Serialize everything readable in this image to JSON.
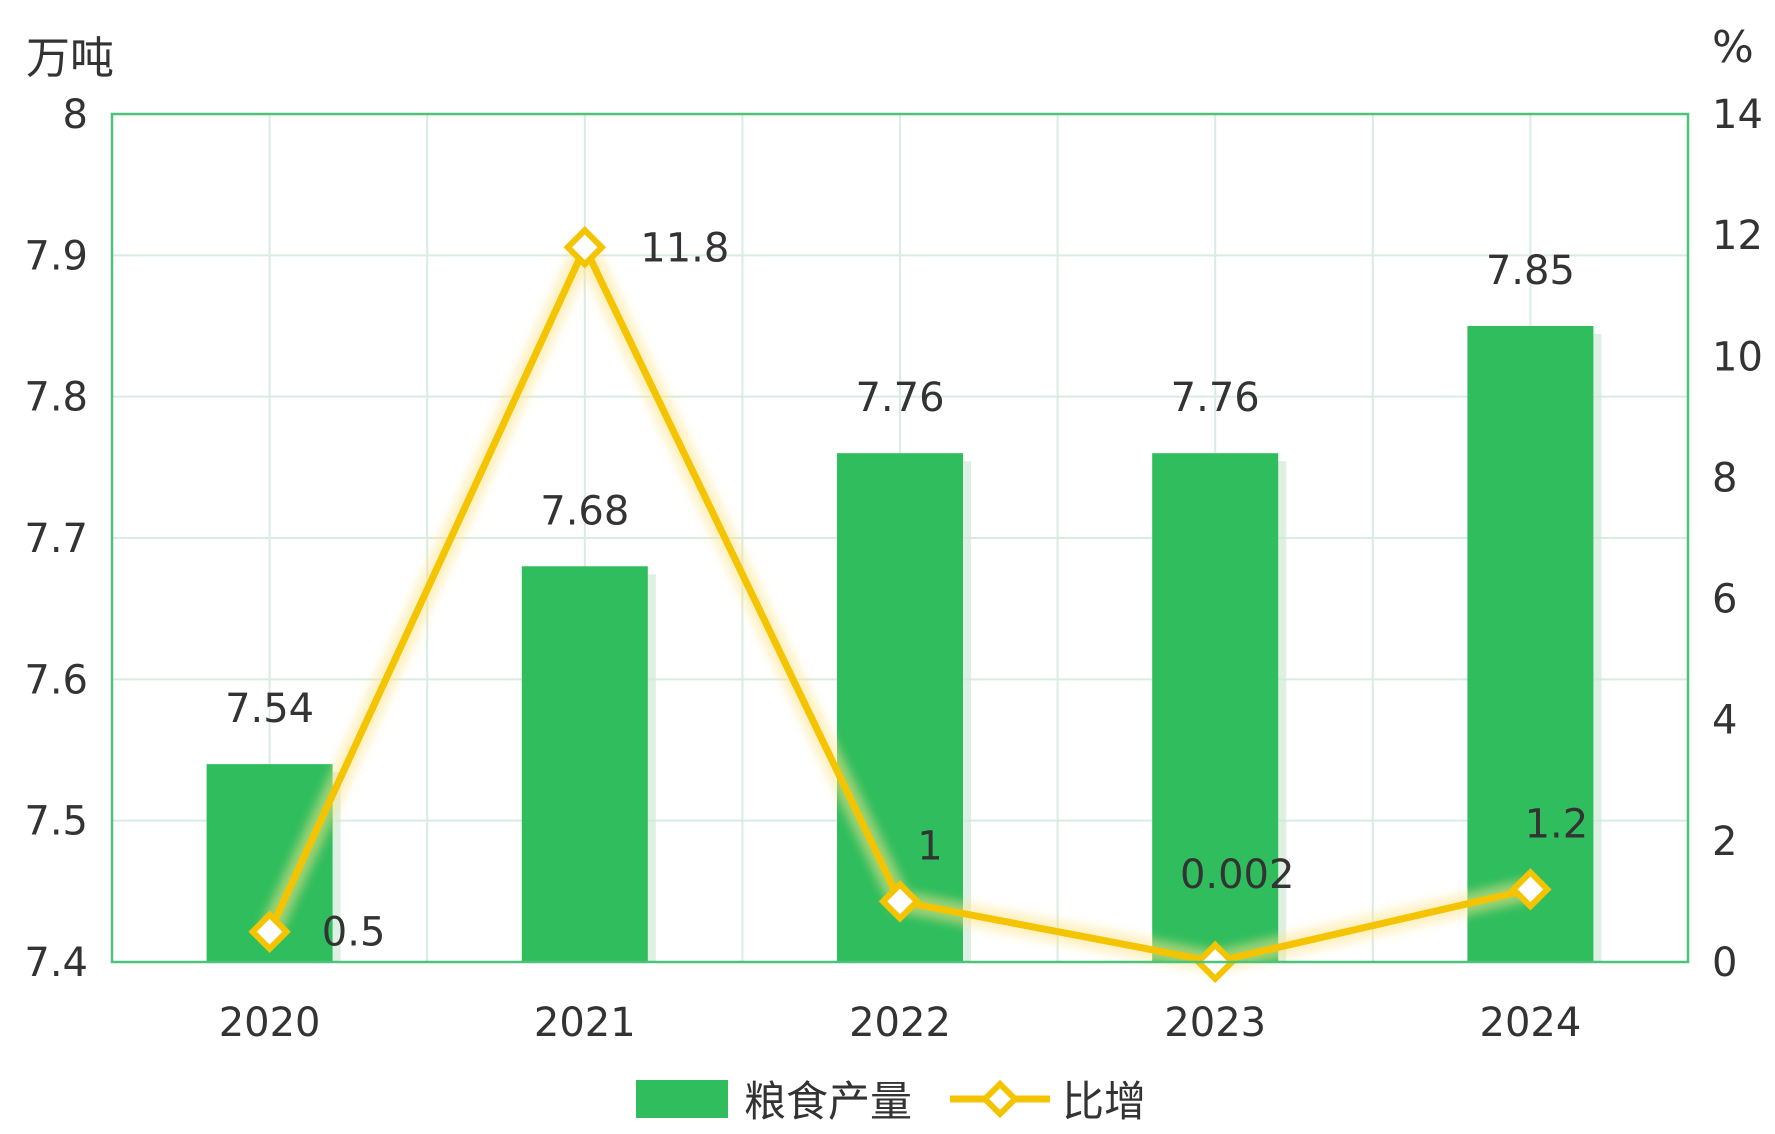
{
  "chart_data": {
    "type": "bar",
    "categories": [
      "2020",
      "2021",
      "2022",
      "2023",
      "2024"
    ],
    "left_unit": "万吨",
    "right_unit": "%",
    "left_axis": {
      "ylim": [
        7.4,
        8
      ],
      "ticks": [
        "8",
        "7.9",
        "7.8",
        "7.7",
        "7.6",
        "7.5",
        "7.4"
      ]
    },
    "right_axis": {
      "ylim": [
        0,
        14
      ],
      "ticks": [
        "14",
        "12",
        "10",
        "8",
        "6",
        "4",
        "2",
        "0"
      ]
    },
    "series": [
      {
        "name": "粮食产量",
        "type": "bar",
        "axis": "left",
        "color": "#2fbd5d",
        "values": [
          7.54,
          7.68,
          7.76,
          7.76,
          7.85
        ],
        "labels": [
          "7.54",
          "7.68",
          "7.76",
          "7.76",
          "7.85"
        ]
      },
      {
        "name": "比增",
        "type": "line",
        "axis": "right",
        "color": "#f5c400",
        "values": [
          0.5,
          11.8,
          1,
          0.002,
          1.2
        ],
        "labels": [
          "0.5",
          "11.8",
          "1",
          "0.002",
          "1.2"
        ]
      }
    ],
    "grid": true,
    "legend_position": "bottom-center"
  }
}
